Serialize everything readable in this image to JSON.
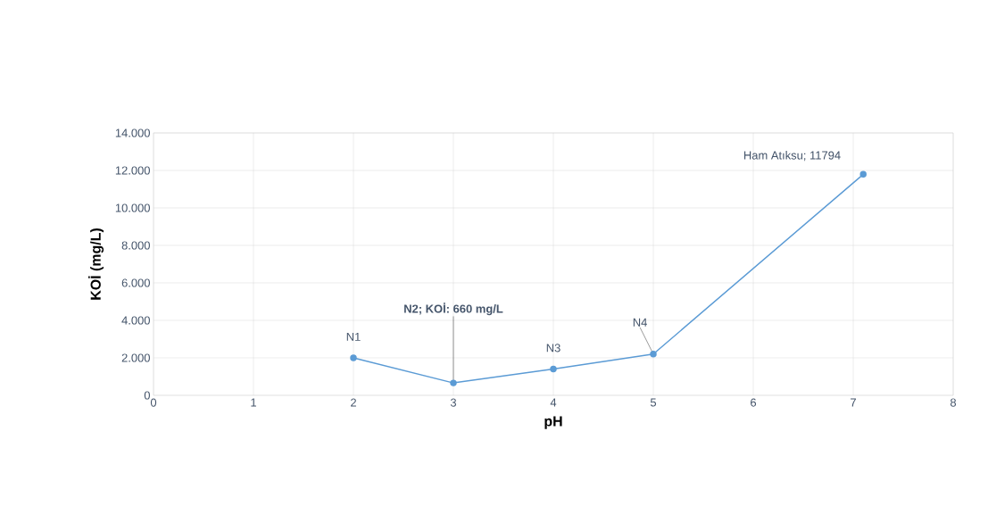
{
  "chart_data": {
    "type": "line",
    "xlabel": "pH",
    "ylabel": "KOİ (mg/L)",
    "x": [
      2,
      3,
      4,
      5,
      7.1
    ],
    "series": [
      {
        "color": "#5b9bd5",
        "values": [
          2000,
          660,
          1400,
          2200,
          11794
        ]
      }
    ],
    "xlim": [
      0,
      8
    ],
    "xticks": [
      0,
      1,
      2,
      3,
      4,
      5,
      6,
      7,
      8
    ],
    "ylim": [
      0,
      14000
    ],
    "yticks": [
      0,
      {
        "value": 2000,
        "label": "2.000"
      },
      {
        "value": 4000,
        "label": "4.000"
      },
      {
        "value": 6000,
        "label": "6.000"
      },
      {
        "value": 8000,
        "label": "8.000"
      },
      {
        "value": 10000,
        "label": "10.000"
      },
      {
        "value": 12000,
        "label": "12.000"
      },
      {
        "value": 14000,
        "label": "14.000"
      }
    ],
    "grid": true,
    "marker": "circle",
    "line_style": "solid",
    "annotations": [
      {
        "text": "N1",
        "x": 2,
        "y": 2000
      },
      {
        "text": "N2; KOİ: 660 mg/L",
        "x": 3,
        "y": 660
      },
      {
        "text": "N3",
        "x": 4,
        "y": 1400
      },
      {
        "text": "N4",
        "x": 5,
        "y": 2200
      },
      {
        "text": "Ham Atıksu; 11794",
        "x": 7.1,
        "y": 11794
      }
    ]
  }
}
